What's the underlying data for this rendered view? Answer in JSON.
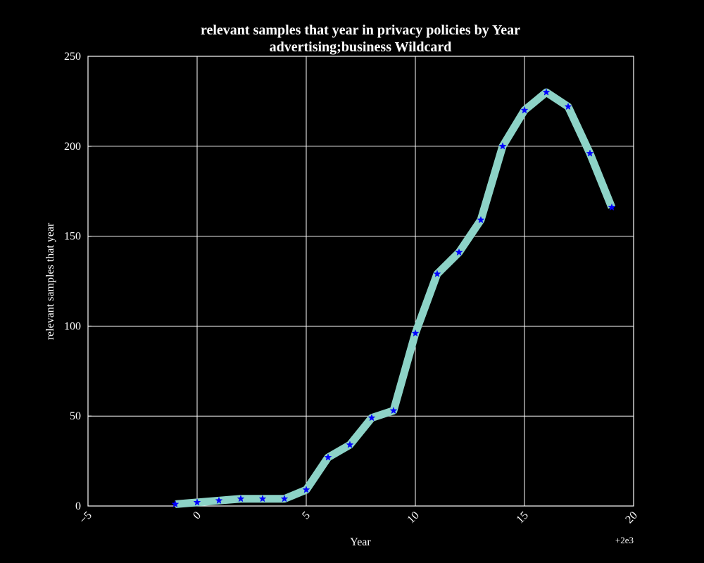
{
  "chart_data": {
    "type": "line",
    "title": "relevant samples that year in privacy policies by Year",
    "subtitle": "advertising;business Wildcard",
    "xlabel": "Year",
    "ylabel": "relevant samples that year",
    "x_offset_label": "+2e3",
    "xlim": [
      -5,
      20
    ],
    "ylim": [
      0,
      250
    ],
    "x_ticks": [
      -5,
      0,
      5,
      10,
      15,
      20
    ],
    "x_tick_labels": [
      "−5",
      "0",
      "5",
      "10",
      "15",
      "20"
    ],
    "y_ticks": [
      0,
      50,
      100,
      150,
      200,
      250
    ],
    "y_tick_labels": [
      "0",
      "50",
      "100",
      "150",
      "200",
      "250"
    ],
    "grid": true,
    "series": [
      {
        "x": [
          -1,
          0,
          1,
          2,
          3,
          4,
          5,
          6,
          7,
          8,
          9,
          10,
          11,
          12,
          13,
          14,
          15,
          16,
          17,
          18,
          19
        ],
        "values": [
          1,
          2,
          3,
          4,
          4,
          4,
          9,
          27,
          34,
          49,
          53,
          96,
          129,
          141,
          159,
          200,
          220,
          230,
          222,
          196,
          166
        ],
        "line_color": "#8dd3c7",
        "marker_color": "#0000ff",
        "marker": "star"
      }
    ]
  }
}
